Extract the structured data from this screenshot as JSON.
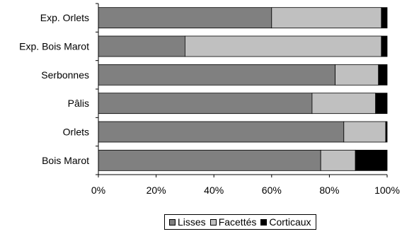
{
  "chart_data": {
    "type": "bar",
    "orientation": "horizontal",
    "stacked": "percent",
    "categories": [
      "Exp. Orlets",
      "Exp. Bois Marot",
      "Serbonnes",
      "Pâlis",
      "Orlets",
      "Bois Marot"
    ],
    "series": [
      {
        "name": "Lisses",
        "color": "#808080",
        "values": [
          60,
          30,
          82,
          74,
          85,
          77
        ]
      },
      {
        "name": "Facettés",
        "color": "#c0c0c0",
        "values": [
          38,
          68,
          15,
          22,
          14.5,
          12
        ]
      },
      {
        "name": "Corticaux",
        "color": "#000000",
        "values": [
          2,
          2,
          3,
          4,
          0.5,
          11
        ]
      }
    ],
    "xticks": [
      "0%",
      "20%",
      "40%",
      "60%",
      "80%",
      "100%"
    ],
    "xlim": [
      0,
      100
    ],
    "grid": false,
    "legend_position": "bottom"
  }
}
